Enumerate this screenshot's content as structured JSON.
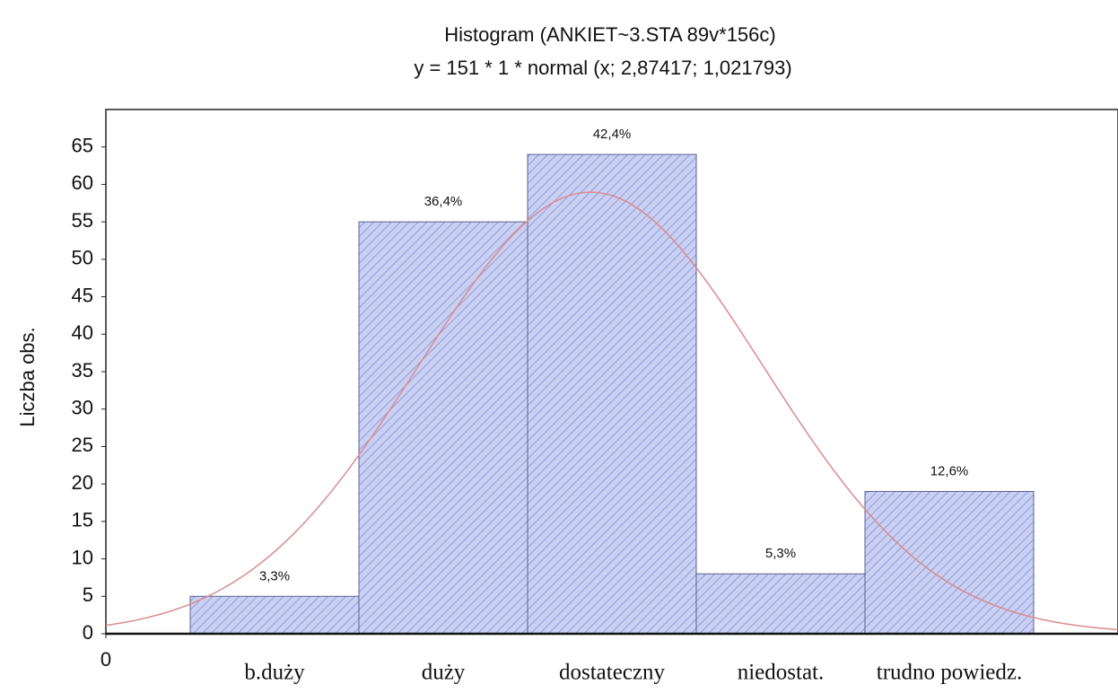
{
  "chart_data": {
    "type": "histogram",
    "title": "Histogram (ANKIET~3.STA 89v*156c)",
    "subtitle": "y = 151 * 1 * normal (x; 2,87417; 1,021793)",
    "ylabel": "Liczba obs.",
    "categories": [
      "b.duży",
      "duży",
      "dostateczny",
      "niedostat.",
      "trudno powiedz."
    ],
    "bins": [
      0.5,
      1.5,
      2.5,
      3.5,
      4.5,
      5.5
    ],
    "values": [
      5,
      55,
      64,
      8,
      19
    ],
    "value_labels": [
      "3,3%",
      "36,4%",
      "42,4%",
      "5,3%",
      "12,6%"
    ],
    "color": "#c9d0f2",
    "hatch_color": "#7b86d8",
    "fit": {
      "n": 151,
      "bin_width": 1,
      "mean": 2.87417,
      "sd": 1.021793,
      "color": "#d98c8c"
    },
    "xlim": [
      0,
      6
    ],
    "xticks": [
      0
    ],
    "ylim": [
      0,
      70
    ],
    "yticks": [
      0,
      5,
      10,
      15,
      20,
      25,
      30,
      35,
      40,
      45,
      50,
      55,
      60,
      65
    ]
  }
}
